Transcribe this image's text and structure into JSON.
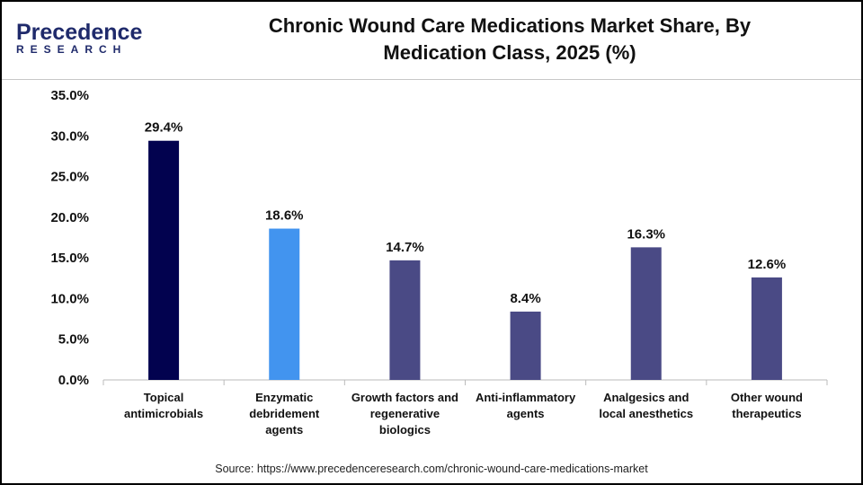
{
  "logo": {
    "line1": "Precedence",
    "line2": "RESEARCH"
  },
  "title_line1": "Chronic Wound Care Medications Market Share, By",
  "title_line2": "Medication Class, 2025 (%)",
  "source": "Source: https://www.precedenceresearch.com/chronic-wound-care-medications-market",
  "chart_data": {
    "type": "bar",
    "title": "Chronic Wound Care Medications Market Share, By Medication Class, 2025 (%)",
    "categories": [
      [
        "Topical",
        "antimicrobials"
      ],
      [
        "Enzymatic",
        "debridement",
        "agents"
      ],
      [
        "Growth factors and",
        "regenerative",
        "biologics"
      ],
      [
        "Anti-inflammatory",
        "agents"
      ],
      [
        "Analgesics and",
        "local anesthetics"
      ],
      [
        "Other wound",
        "therapeutics"
      ]
    ],
    "values": [
      29.4,
      18.6,
      14.7,
      8.4,
      16.3,
      12.6
    ],
    "data_labels": [
      "29.4%",
      "18.6%",
      "14.7%",
      "8.4%",
      "16.3%",
      "12.6%"
    ],
    "colors": [
      "#02024f",
      "#4294ef",
      "#4a4a85",
      "#4a4a85",
      "#4a4a85",
      "#4a4a85"
    ],
    "ylim": [
      0,
      35
    ],
    "yticks": [
      "0.0%",
      "5.0%",
      "10.0%",
      "15.0%",
      "20.0%",
      "25.0%",
      "30.0%",
      "35.0%"
    ],
    "grid": false
  }
}
